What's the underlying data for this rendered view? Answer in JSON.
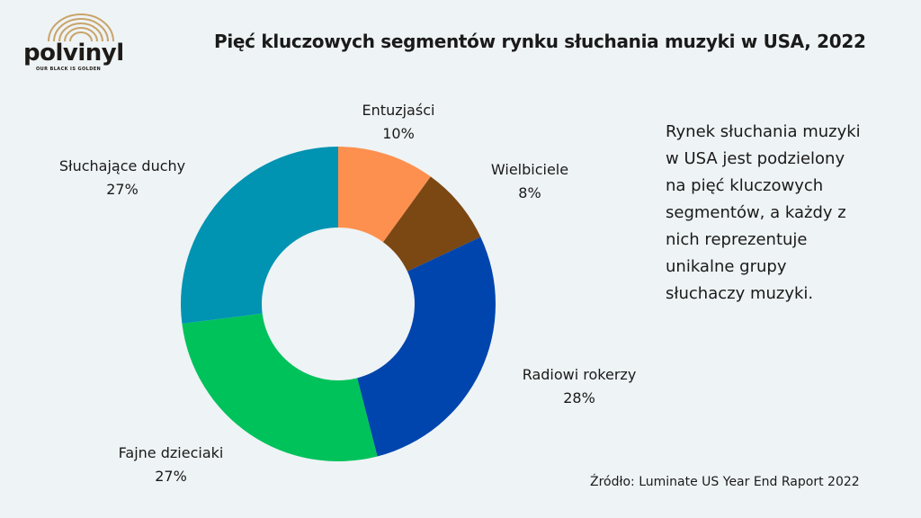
{
  "brand": {
    "name": "polvinyl",
    "tagline": "OUR BLACK IS GOLDEN",
    "arc_color": "#c9a46a",
    "text_color": "#1e1a17"
  },
  "title": "Pięć kluczowych segmentów rynku słuchania muzyki w USA, 2022",
  "description_lines": [
    "Rynek słuchania muzyki",
    "w USA jest podzielony",
    "na pięć kluczowych",
    "segmentów, a każdy z",
    "nich reprezentuje",
    "unikalne grupy",
    "słuchaczy muzyki."
  ],
  "source": "Źródło: Luminate US Year End Raport 2022",
  "chart_data": {
    "type": "pie",
    "donut": true,
    "title": "Pięć kluczowych segmentów rynku słuchania muzyki w USA, 2022",
    "slices": [
      {
        "label": "Entuzjaści",
        "value": 10,
        "value_label": "10%",
        "color": "#fd904f"
      },
      {
        "label": "Wielbiciele",
        "value": 8,
        "value_label": "8%",
        "color": "#7b4713"
      },
      {
        "label": "Radiowi rokerzy",
        "value": 28,
        "value_label": "28%",
        "color": "#0045ad"
      },
      {
        "label": "Fajne dzieciaki",
        "value": 27,
        "value_label": "27%",
        "color": "#00c25b"
      },
      {
        "label": "Słuchające duchy",
        "value": 27,
        "value_label": "27%",
        "color": "#0093b2"
      }
    ],
    "legend": "none"
  }
}
